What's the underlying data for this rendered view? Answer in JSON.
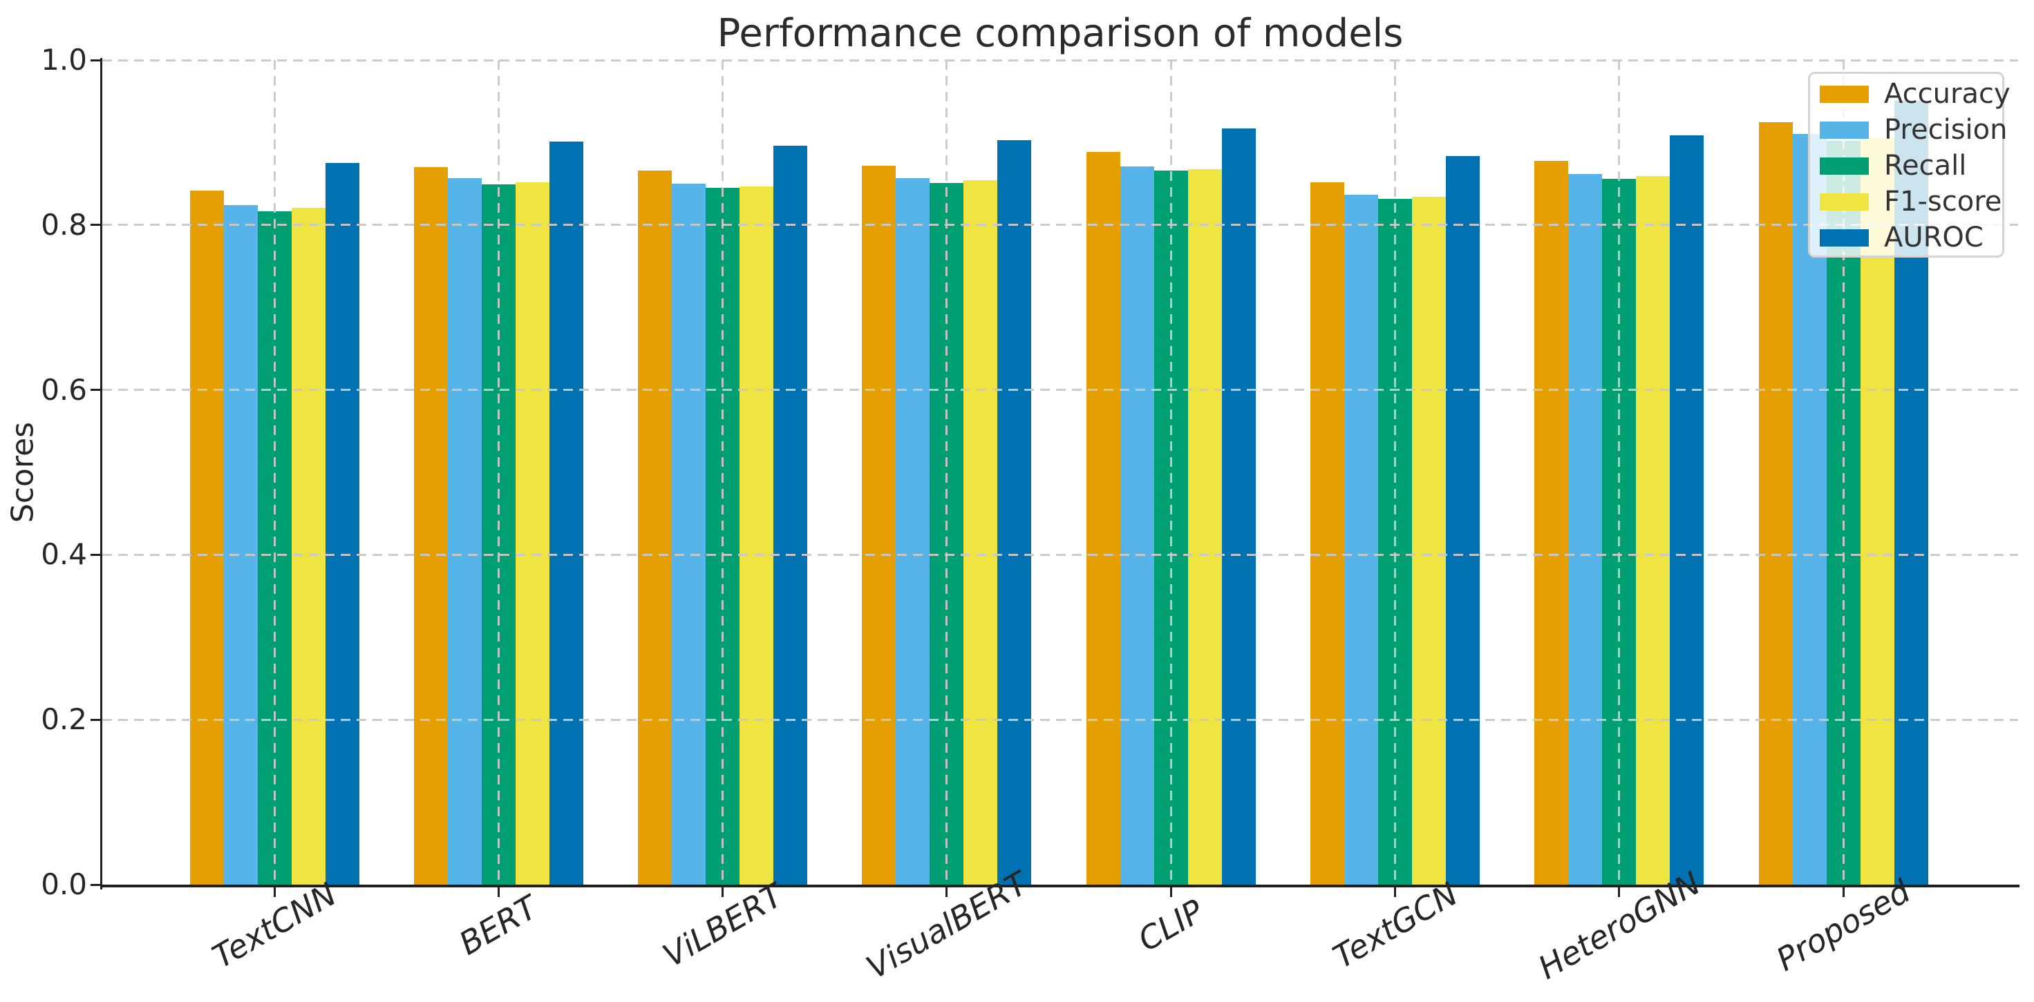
{
  "figure": {
    "background": "#ffffff",
    "text_color": "#262626",
    "spine_color": "#1f1f1f",
    "gridline_color": "#c9c9c9"
  },
  "chart_data": {
    "type": "bar",
    "title": "Performance comparison of models",
    "xlabel": "",
    "ylabel": "Scores",
    "categories": [
      "TextCNN",
      "BERT",
      "ViLBERT",
      "VisualBERT",
      "CLIP",
      "TextGCN",
      "HeteroGNN",
      "Proposed"
    ],
    "series": [
      {
        "name": "Accuracy",
        "color": "#E69F00",
        "values": [
          0.842,
          0.87,
          0.866,
          0.872,
          0.889,
          0.852,
          0.878,
          0.925
        ]
      },
      {
        "name": "Precision",
        "color": "#56B4E9",
        "values": [
          0.824,
          0.857,
          0.85,
          0.857,
          0.871,
          0.837,
          0.862,
          0.91
        ]
      },
      {
        "name": "Recall",
        "color": "#009E73",
        "values": [
          0.817,
          0.849,
          0.845,
          0.851,
          0.866,
          0.832,
          0.856,
          0.902
        ]
      },
      {
        "name": "F1-score",
        "color": "#F0E442",
        "values": [
          0.821,
          0.852,
          0.847,
          0.854,
          0.868,
          0.834,
          0.859,
          0.905
        ]
      },
      {
        "name": "AUROC",
        "color": "#0072B2",
        "values": [
          0.875,
          0.901,
          0.896,
          0.903,
          0.917,
          0.884,
          0.909,
          0.951
        ]
      }
    ],
    "ylim": [
      0.0,
      1.0
    ],
    "yticks": [
      0.0,
      0.2,
      0.4,
      0.6,
      0.8,
      1.0
    ],
    "ytick_labels": [
      "0.0",
      "0.2",
      "0.4",
      "0.6",
      "0.8",
      "1.0"
    ],
    "xtick_rotation_degrees": 30,
    "grid": true,
    "grid_style": "dashed",
    "grid_above_bars": true,
    "legend": {
      "position": "upper right",
      "entries": [
        "Accuracy",
        "Precision",
        "Recall",
        "F1-score",
        "AUROC"
      ]
    }
  }
}
